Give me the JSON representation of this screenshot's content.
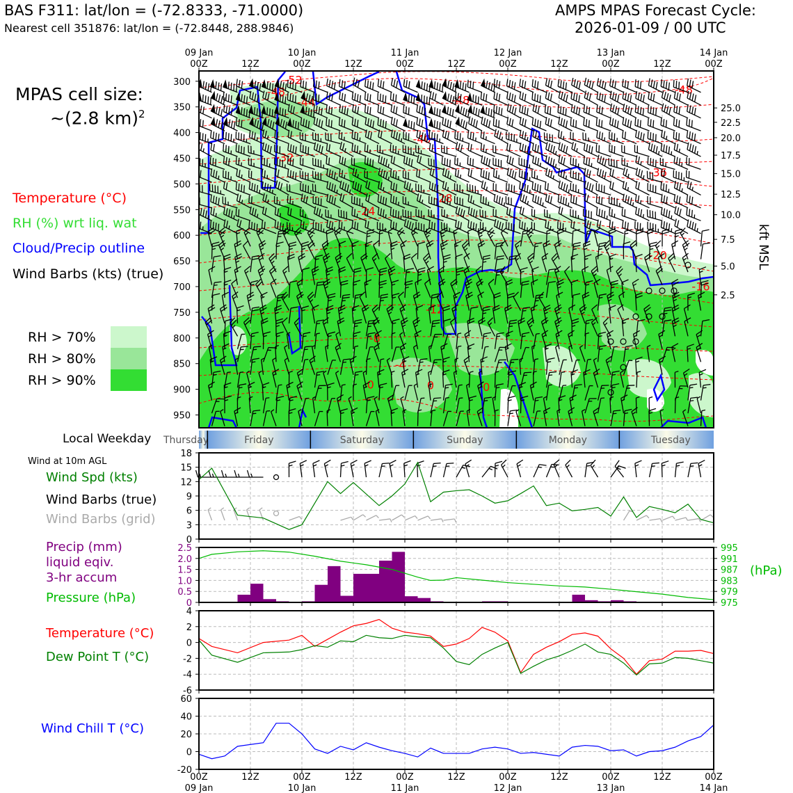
{
  "header": {
    "station": "BAS F311: lat/lon = (-72.8333, -71.0000)",
    "nearest_cell": "Nearest cell 351876: lat/lon = (-72.8448, 288.9846)",
    "cycle_title": "AMPS MPAS Forecast Cycle:",
    "cycle_time": "2026-01-09 / 00 UTC"
  },
  "sidebar": {
    "cell_size_label": "MPAS cell size:",
    "cell_size_value": "~(2.8 km)",
    "cell_size_exp": "2",
    "legend_temperature": "Temperature (°C)",
    "legend_rh": "RH (%) wrt liq. wat",
    "legend_cloud": "Cloud/Precip outline",
    "legend_wind": "Wind Barbs (kts) (true)",
    "rh_levels": [
      "RH > 70%",
      "RH > 80%",
      "RH > 90%"
    ],
    "local_weekday_label": "Local Weekday",
    "wind10m_label": "Wind at 10m AGL",
    "wind_spd_label": "Wind Spd (kts)",
    "wind_barbs_true_label": "Wind Barbs (true)",
    "wind_barbs_grid_label": "Wind Barbs (grid)",
    "precip_label_1": "Precip (mm)",
    "precip_label_2": "liquid eqiv.",
    "precip_label_3": "3-hr accum",
    "pressure_label": "Pressure (hPa)",
    "temp_label": "Temperature (°C)",
    "dew_label": "Dew Point T (°C)",
    "windchill_label": "Wind Chill T (°C)"
  },
  "colors": {
    "temperature": "#ff0000",
    "rh_text": "#33dd33",
    "cloud": "#0000ff",
    "rh70": "#ccf7cc",
    "rh80": "#99e699",
    "rh90": "#33dd33",
    "wind_spd": "#008000",
    "wind_grid": "#aaaaaa",
    "precip": "#800080",
    "pressure": "#00bb00",
    "dew": "#008000",
    "windchill": "#0000ff"
  },
  "chart_data": [
    {
      "type": "heatmap",
      "name": "time-height cross section",
      "top_time_labels": [
        [
          "09 Jan",
          "00Z"
        ],
        [
          "",
          "12Z"
        ],
        [
          "10 Jan",
          "00Z"
        ],
        [
          "",
          "12Z"
        ],
        [
          "11 Jan",
          "00Z"
        ],
        [
          "",
          "12Z"
        ],
        [
          "12 Jan",
          "00Z"
        ],
        [
          "",
          "12Z"
        ],
        [
          "13 Jan",
          "00Z"
        ],
        [
          "",
          "12Z"
        ],
        [
          "14 Jan",
          "00Z"
        ]
      ],
      "x_hours": [
        0,
        120
      ],
      "pressure_ticks": [
        "300",
        "350",
        "400",
        "450",
        "500",
        "550",
        "600",
        "650",
        "700",
        "750",
        "800",
        "850",
        "900",
        "950"
      ],
      "pressure_range": [
        280,
        975
      ],
      "right_axis_label": "kft MSL",
      "kft_ticks": [
        {
          "label": "25.0",
          "p": 352
        },
        {
          "label": "22.5",
          "p": 380
        },
        {
          "label": "20.0",
          "p": 410
        },
        {
          "label": "17.5",
          "p": 444
        },
        {
          "label": "15.0",
          "p": 480
        },
        {
          "label": "12.5",
          "p": 520
        },
        {
          "label": "10.0",
          "p": 560
        },
        {
          "label": "7.5",
          "p": 608
        },
        {
          "label": "5.0",
          "p": 660
        },
        {
          "label": "2.5",
          "p": 716
        }
      ],
      "isotherm_labels": [
        {
          "text": "-52",
          "t": 22,
          "p": 297
        },
        {
          "text": "-48",
          "t": 18,
          "p": 320
        },
        {
          "text": "-48",
          "t": 61,
          "p": 336
        },
        {
          "text": "-48",
          "t": 113,
          "p": 316
        },
        {
          "text": "-44",
          "t": 25,
          "p": 340
        },
        {
          "text": "-40",
          "t": 52,
          "p": 412
        },
        {
          "text": "-36",
          "t": 107,
          "p": 477
        },
        {
          "text": "-32",
          "t": 20,
          "p": 448
        },
        {
          "text": "-28",
          "t": 57,
          "p": 527
        },
        {
          "text": "-24",
          "t": 39,
          "p": 552
        },
        {
          "text": "-20",
          "t": 107,
          "p": 638
        },
        {
          "text": "-16",
          "t": 117,
          "p": 699
        },
        {
          "text": "-12",
          "t": 55,
          "p": 744
        },
        {
          "text": "-8",
          "t": 41,
          "p": 800
        },
        {
          "text": "-4",
          "t": 47,
          "p": 852
        },
        {
          "text": "0",
          "t": 40,
          "p": 890
        },
        {
          "text": "0",
          "t": 54,
          "p": 892
        },
        {
          "text": "0",
          "t": 67,
          "p": 895
        }
      ]
    },
    {
      "type": "table",
      "name": "local weekday",
      "days": [
        "Thursday",
        "Friday",
        "Saturday",
        "Sunday",
        "Monday",
        "Tuesday"
      ],
      "day_boundaries_hours": [
        2,
        26,
        50,
        74,
        98
      ]
    },
    {
      "type": "line",
      "name": "wind speed",
      "ylim": [
        0,
        18
      ],
      "yticks": [
        0,
        3,
        6,
        9,
        12,
        15,
        18
      ],
      "x_hours": [
        0,
        3,
        9,
        15,
        21,
        24,
        30,
        33,
        36,
        42,
        45,
        48,
        51,
        54,
        57,
        60,
        63,
        66,
        69,
        72,
        75,
        78,
        81,
        84,
        87,
        90,
        93,
        96,
        99,
        102,
        105,
        108,
        111,
        114,
        117,
        120
      ],
      "values": [
        12.4,
        14.8,
        5.0,
        4.4,
        2.0,
        3.0,
        12.0,
        9.5,
        11.8,
        7.0,
        9.0,
        11.5,
        16.0,
        7.8,
        9.8,
        10.1,
        10.3,
        9.0,
        7.5,
        8.0,
        9.5,
        11.1,
        7.0,
        7.5,
        5.9,
        6.2,
        6.6,
        4.8,
        8.8,
        4.5,
        6.8,
        6.2,
        5.5,
        7.3,
        4.1,
        3.4
      ]
    },
    {
      "type": "bar",
      "name": "precipitation 3-hr accum",
      "ylim": [
        0,
        2.5
      ],
      "yticks": [
        0,
        0.5,
        1.0,
        1.5,
        2.0,
        2.5
      ],
      "bar_width_hours": 3,
      "bar_start_hours": [
        9,
        12,
        15,
        18,
        24,
        27,
        30,
        33,
        36,
        39,
        42,
        45,
        48,
        51,
        54,
        66,
        69,
        87,
        90,
        93,
        96,
        99
      ],
      "values": [
        0.35,
        0.85,
        0.15,
        0.05,
        0.05,
        0.8,
        1.65,
        0.3,
        1.3,
        1.3,
        1.9,
        2.3,
        0.28,
        0.2,
        0.05,
        0.05,
        0.05,
        0.35,
        0.1,
        0.05,
        0.1,
        0.05
      ],
      "pressure": {
        "name": "Pressure (hPa)",
        "ylim": [
          975,
          995
        ],
        "yticks": [
          975,
          979,
          983,
          987,
          991,
          995
        ],
        "axis_unit": "(hPa)",
        "x_hours": [
          0,
          3,
          9,
          15,
          21,
          27,
          33,
          39,
          45,
          51,
          54,
          57,
          60,
          66,
          72,
          78,
          84,
          90,
          96,
          102,
          108,
          114,
          120
        ],
        "values": [
          991,
          992.5,
          993.4,
          993.8,
          993.3,
          991.8,
          990.0,
          988.7,
          987.0,
          984.2,
          983.0,
          983.1,
          984.0,
          983.1,
          982.2,
          981.6,
          981.0,
          980.6,
          979.8,
          978.9,
          978.0,
          976.8,
          976.0
        ]
      }
    },
    {
      "type": "line",
      "name": "temperature and dew point",
      "ylim": [
        -6,
        4
      ],
      "yticks": [
        -6,
        -4,
        -2,
        0,
        2,
        4
      ],
      "x_hours": [
        0,
        3,
        9,
        15,
        21,
        24,
        27,
        30,
        33,
        36,
        39,
        42,
        45,
        48,
        51,
        54,
        57,
        60,
        63,
        66,
        69,
        72,
        75,
        78,
        81,
        84,
        87,
        90,
        93,
        96,
        99,
        102,
        105,
        108,
        111,
        114,
        117,
        120
      ],
      "series": [
        {
          "name": "Temperature (°C)",
          "values": [
            0.5,
            -0.5,
            -1.3,
            0,
            0.3,
            0.9,
            -0.5,
            0.4,
            1.3,
            2.1,
            2.4,
            2.9,
            1.8,
            1.3,
            1.1,
            0.8,
            -0.5,
            -0.2,
            0.5,
            1.9,
            1.3,
            0.2,
            -3.8,
            -1.5,
            -0.6,
            0.1,
            1.0,
            1.2,
            0.8,
            -0.8,
            -2.0,
            -4.0,
            -2.3,
            -2.1,
            -1.1,
            -1.1,
            -1.0,
            -1.4
          ]
        },
        {
          "name": "Dew Point T (°C)",
          "values": [
            0.3,
            -1.6,
            -2.5,
            -1.3,
            -1.2,
            -0.9,
            -0.4,
            -0.6,
            0.2,
            0.1,
            0.9,
            0.6,
            0.5,
            0.9,
            0.7,
            0.6,
            -0.7,
            -2.4,
            -2.8,
            -1.5,
            -0.7,
            0,
            -3.9,
            -3.0,
            -2.2,
            -1.7,
            -1.0,
            -0.2,
            -1.2,
            -1.5,
            -2.6,
            -4.1,
            -2.7,
            -2.6,
            -1.9,
            -2.0,
            -2.3,
            -2.6
          ]
        }
      ]
    },
    {
      "type": "line",
      "name": "wind chill",
      "ylim": [
        -20,
        60
      ],
      "yticks": [
        -20,
        0,
        20,
        40,
        60
      ],
      "x_hours": [
        0,
        3,
        6,
        9,
        15,
        18,
        21,
        24,
        27,
        30,
        33,
        36,
        39,
        42,
        45,
        48,
        51,
        54,
        57,
        60,
        63,
        66,
        69,
        72,
        75,
        78,
        84,
        87,
        90,
        93,
        96,
        99,
        102,
        105,
        108,
        111,
        114,
        117,
        120
      ],
      "values": [
        -3,
        -8,
        -5,
        6,
        10,
        32,
        32,
        20,
        3,
        -2,
        6,
        2,
        10,
        5,
        1,
        -2,
        -6,
        4,
        -2,
        -2,
        -2,
        3,
        5,
        3,
        -2,
        -1,
        -5,
        5,
        7,
        6,
        1,
        2,
        -5,
        0,
        1,
        5,
        12,
        17,
        30
      ]
    }
  ],
  "bottom_axis": {
    "labels": [
      [
        "00Z",
        "09 Jan"
      ],
      [
        "12Z",
        ""
      ],
      [
        "00Z",
        "10 Jan"
      ],
      [
        "12Z",
        ""
      ],
      [
        "00Z",
        "11 Jan"
      ],
      [
        "12Z",
        ""
      ],
      [
        "00Z",
        "12 Jan"
      ],
      [
        "12Z",
        ""
      ],
      [
        "00Z",
        "13 Jan"
      ],
      [
        "12Z",
        ""
      ],
      [
        "00Z",
        "14 Jan"
      ]
    ]
  }
}
